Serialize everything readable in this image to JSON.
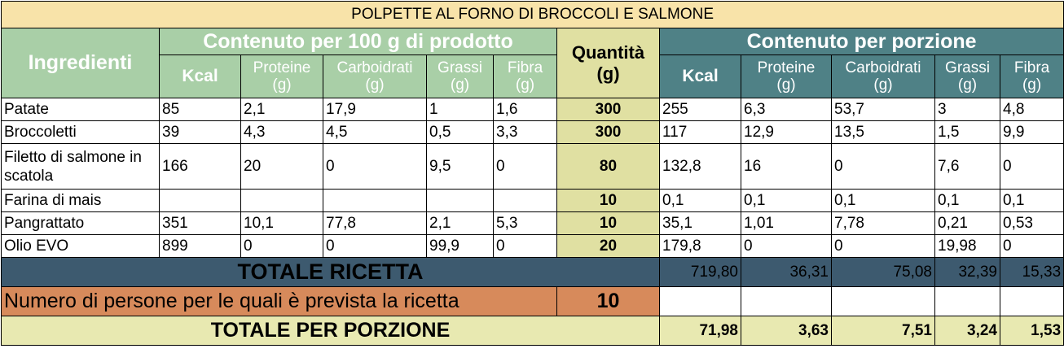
{
  "title": "POLPETTE AL FORNO DI BROCCOLI E SALMONE",
  "header": {
    "per100": "Contenuto per 100 g di prodotto",
    "quantita_line1": "Quantità",
    "quantita_line2": "(g)",
    "porzione": "Contenuto per porzione",
    "ingredienti": "Ingredienti",
    "cols": [
      {
        "line1": "Kcal",
        "line2": ""
      },
      {
        "line1": "Proteine",
        "line2": "(g)"
      },
      {
        "line1": "Carboidrati",
        "line2": "(g)"
      },
      {
        "line1": "Grassi",
        "line2": "(g)"
      },
      {
        "line1": "Fibra",
        "line2": "(g)"
      }
    ]
  },
  "rows": [
    {
      "name": "Patate",
      "per100": [
        "85",
        "2,1",
        "17,9",
        "1",
        "1,6"
      ],
      "qty": "300",
      "porz": [
        "255",
        "6,3",
        "53,7",
        "3",
        "4,8"
      ]
    },
    {
      "name": "Broccoletti",
      "per100": [
        "39",
        "4,3",
        "4,5",
        "0,5",
        "3,3"
      ],
      "qty": "300",
      "porz": [
        "117",
        "12,9",
        "13,5",
        "1,5",
        "9,9"
      ]
    },
    {
      "name": "Filetto di salmone in scatola",
      "per100": [
        "166",
        "20",
        "0",
        "9,5",
        "0"
      ],
      "qty": "80",
      "porz": [
        "132,8",
        "16",
        "0",
        "7,6",
        "0"
      ]
    },
    {
      "name": "Farina di mais",
      "per100": [
        "",
        "",
        "",
        "",
        ""
      ],
      "qty": "10",
      "porz": [
        "0,1",
        "0,1",
        "0,1",
        "0,1",
        "0,1"
      ]
    },
    {
      "name": "Pangrattato",
      "per100": [
        "351",
        "10,1",
        "77,8",
        "2,1",
        "5,3"
      ],
      "qty": "10",
      "porz": [
        "35,1",
        "1,01",
        "7,78",
        "0,21",
        "0,53"
      ]
    },
    {
      "name": "Olio EVO",
      "per100": [
        "899",
        "0",
        "0",
        "99,9",
        "0"
      ],
      "qty": "20",
      "porz": [
        "179,8",
        "0",
        "0",
        "19,98",
        "0"
      ]
    }
  ],
  "totale": {
    "label": "TOTALE RICETTA",
    "values": [
      "719,80",
      "36,31",
      "75,08",
      "32,39",
      "15,33"
    ]
  },
  "persone": {
    "label": "Numero di persone per le quali è prevista la ricetta",
    "value": "10"
  },
  "porzione": {
    "label": "TOTALE PER PORZIONE",
    "values": [
      "71,98",
      "3,63",
      "7,51",
      "3,24",
      "1,53"
    ]
  },
  "colors": {
    "title_bg": "#f8e3a9",
    "green_header": "#a9cfa7",
    "teal_header": "#4f8186",
    "quantity_bg": "#e0e0a2",
    "totale_bg": "#3d5a6f",
    "persone_bg": "#d78a5b",
    "porzione_bg": "#e8e9b1"
  }
}
